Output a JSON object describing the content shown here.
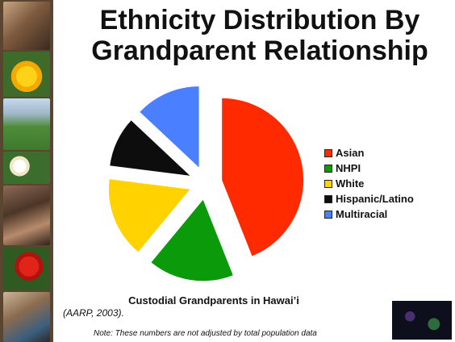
{
  "page": {
    "title": "Ethnicity Distribution By Grandparent Relationship",
    "subtitle": "Custodial Grandparents in Hawai’i",
    "citation": "(AARP, 2003).",
    "note": "Note:  These numbers are not adjusted by total population data"
  },
  "chart_data": {
    "type": "pie",
    "exploded": true,
    "legend_position": "right",
    "title": "",
    "slices": [
      {
        "label": "Asian",
        "value": 44,
        "color": "#ff2a00"
      },
      {
        "label": "NHPI",
        "value": 17,
        "color": "#0a9a0a"
      },
      {
        "label": "White",
        "value": 16,
        "color": "#ffd200"
      },
      {
        "label": "Hispanic/Latino",
        "value": 10,
        "color": "#0d0d0d"
      },
      {
        "label": "Multiracial",
        "value": 13,
        "color": "#4a7fff"
      }
    ]
  }
}
